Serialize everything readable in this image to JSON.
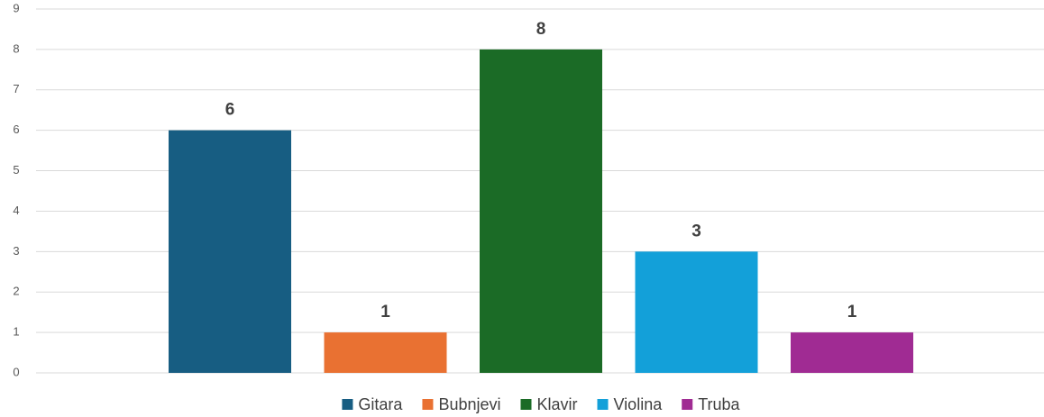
{
  "chart_data": {
    "type": "bar",
    "series": [
      {
        "name": "Gitara",
        "color": "#175d82",
        "values": [
          6
        ]
      },
      {
        "name": "Bubnjevi",
        "color": "#e97132",
        "values": [
          1
        ]
      },
      {
        "name": "Klavir",
        "color": "#1b6b26",
        "values": [
          8
        ]
      },
      {
        "name": "Violina",
        "color": "#13a0d9",
        "values": [
          3
        ]
      },
      {
        "name": "Truba",
        "color": "#a02b93",
        "values": [
          1
        ]
      }
    ],
    "ylim": [
      0,
      9
    ],
    "yticks": [
      0,
      1,
      2,
      3,
      4,
      5,
      6,
      7,
      8,
      9
    ],
    "grid": true,
    "legend": "bottom"
  }
}
